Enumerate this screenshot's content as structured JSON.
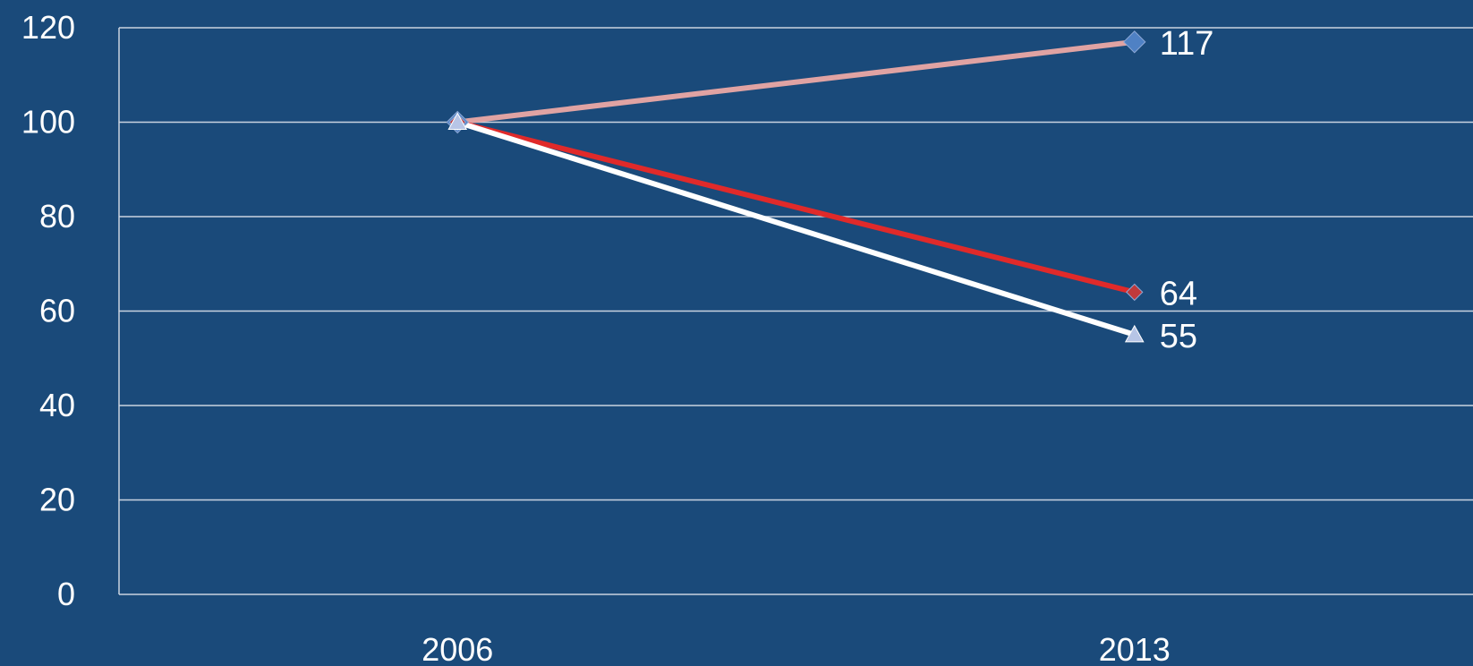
{
  "chart_data": {
    "type": "line",
    "title": "",
    "xlabel": "",
    "ylabel": "",
    "categories": [
      "2006",
      "2013"
    ],
    "ylim": [
      0,
      120
    ],
    "yticks": [
      0,
      20,
      40,
      60,
      80,
      100,
      120
    ],
    "grid": true,
    "legend": "none",
    "background": "#1a4a7a",
    "series": [
      {
        "values": [
          100,
          117
        ],
        "color": "#e0a3a3",
        "marker": "diamond",
        "marker_color": "#4f81c4",
        "end_label": "117"
      },
      {
        "values": [
          100,
          64
        ],
        "color": "#e02a2a",
        "marker": "diamond",
        "marker_color": "#c0393b",
        "end_label": "64"
      },
      {
        "values": [
          100,
          55
        ],
        "color": "#ffffff",
        "marker": "triangle",
        "marker_color": "#b7c5e6",
        "end_label": "55"
      }
    ]
  }
}
